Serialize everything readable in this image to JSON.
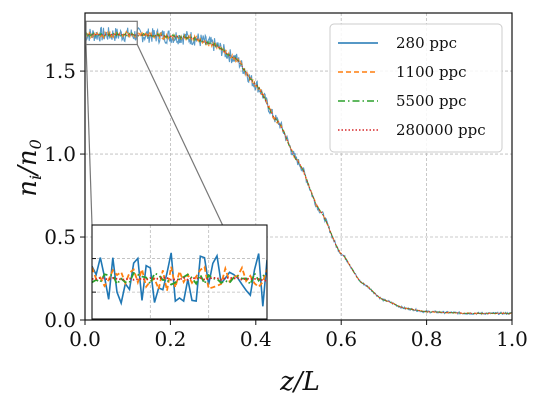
{
  "chart_data": {
    "type": "line",
    "xlabel": "z/L",
    "ylabel": "n_i/n_0",
    "xlim": [
      0.0,
      1.0
    ],
    "ylim": [
      0.0,
      1.85
    ],
    "grid": true,
    "legend_position": "top-right",
    "xticks": [
      "0.0",
      "0.2",
      "0.4",
      "0.6",
      "0.8",
      "1.0"
    ],
    "yticks": [
      "0.0",
      "0.5",
      "1.0",
      "1.5"
    ],
    "profile": {
      "x": [
        0.0,
        0.1,
        0.2,
        0.25,
        0.3,
        0.35,
        0.4,
        0.45,
        0.5,
        0.55,
        0.6,
        0.65,
        0.7,
        0.75,
        0.8,
        0.85,
        0.9,
        1.0
      ],
      "y": [
        1.72,
        1.72,
        1.71,
        1.7,
        1.66,
        1.58,
        1.42,
        1.2,
        0.95,
        0.66,
        0.4,
        0.22,
        0.12,
        0.07,
        0.05,
        0.045,
        0.04,
        0.04
      ]
    },
    "series": [
      {
        "name": "280 ppc",
        "color": "#1f77b4",
        "linestyle": "solid",
        "noise": 0.045
      },
      {
        "name": "1100 ppc",
        "color": "#ff7f0e",
        "linestyle": "dashed",
        "noise": 0.02
      },
      {
        "name": "5500 ppc",
        "color": "#2ca02c",
        "linestyle": "dashdot",
        "noise": 0.01
      },
      {
        "name": "280000 ppc",
        "color": "#d62728",
        "linestyle": "dotted",
        "noise": 0.002
      }
    ],
    "inset": {
      "zoom_xlim": [
        0.0,
        0.12
      ],
      "zoom_ylim": [
        1.66,
        1.8
      ]
    }
  }
}
